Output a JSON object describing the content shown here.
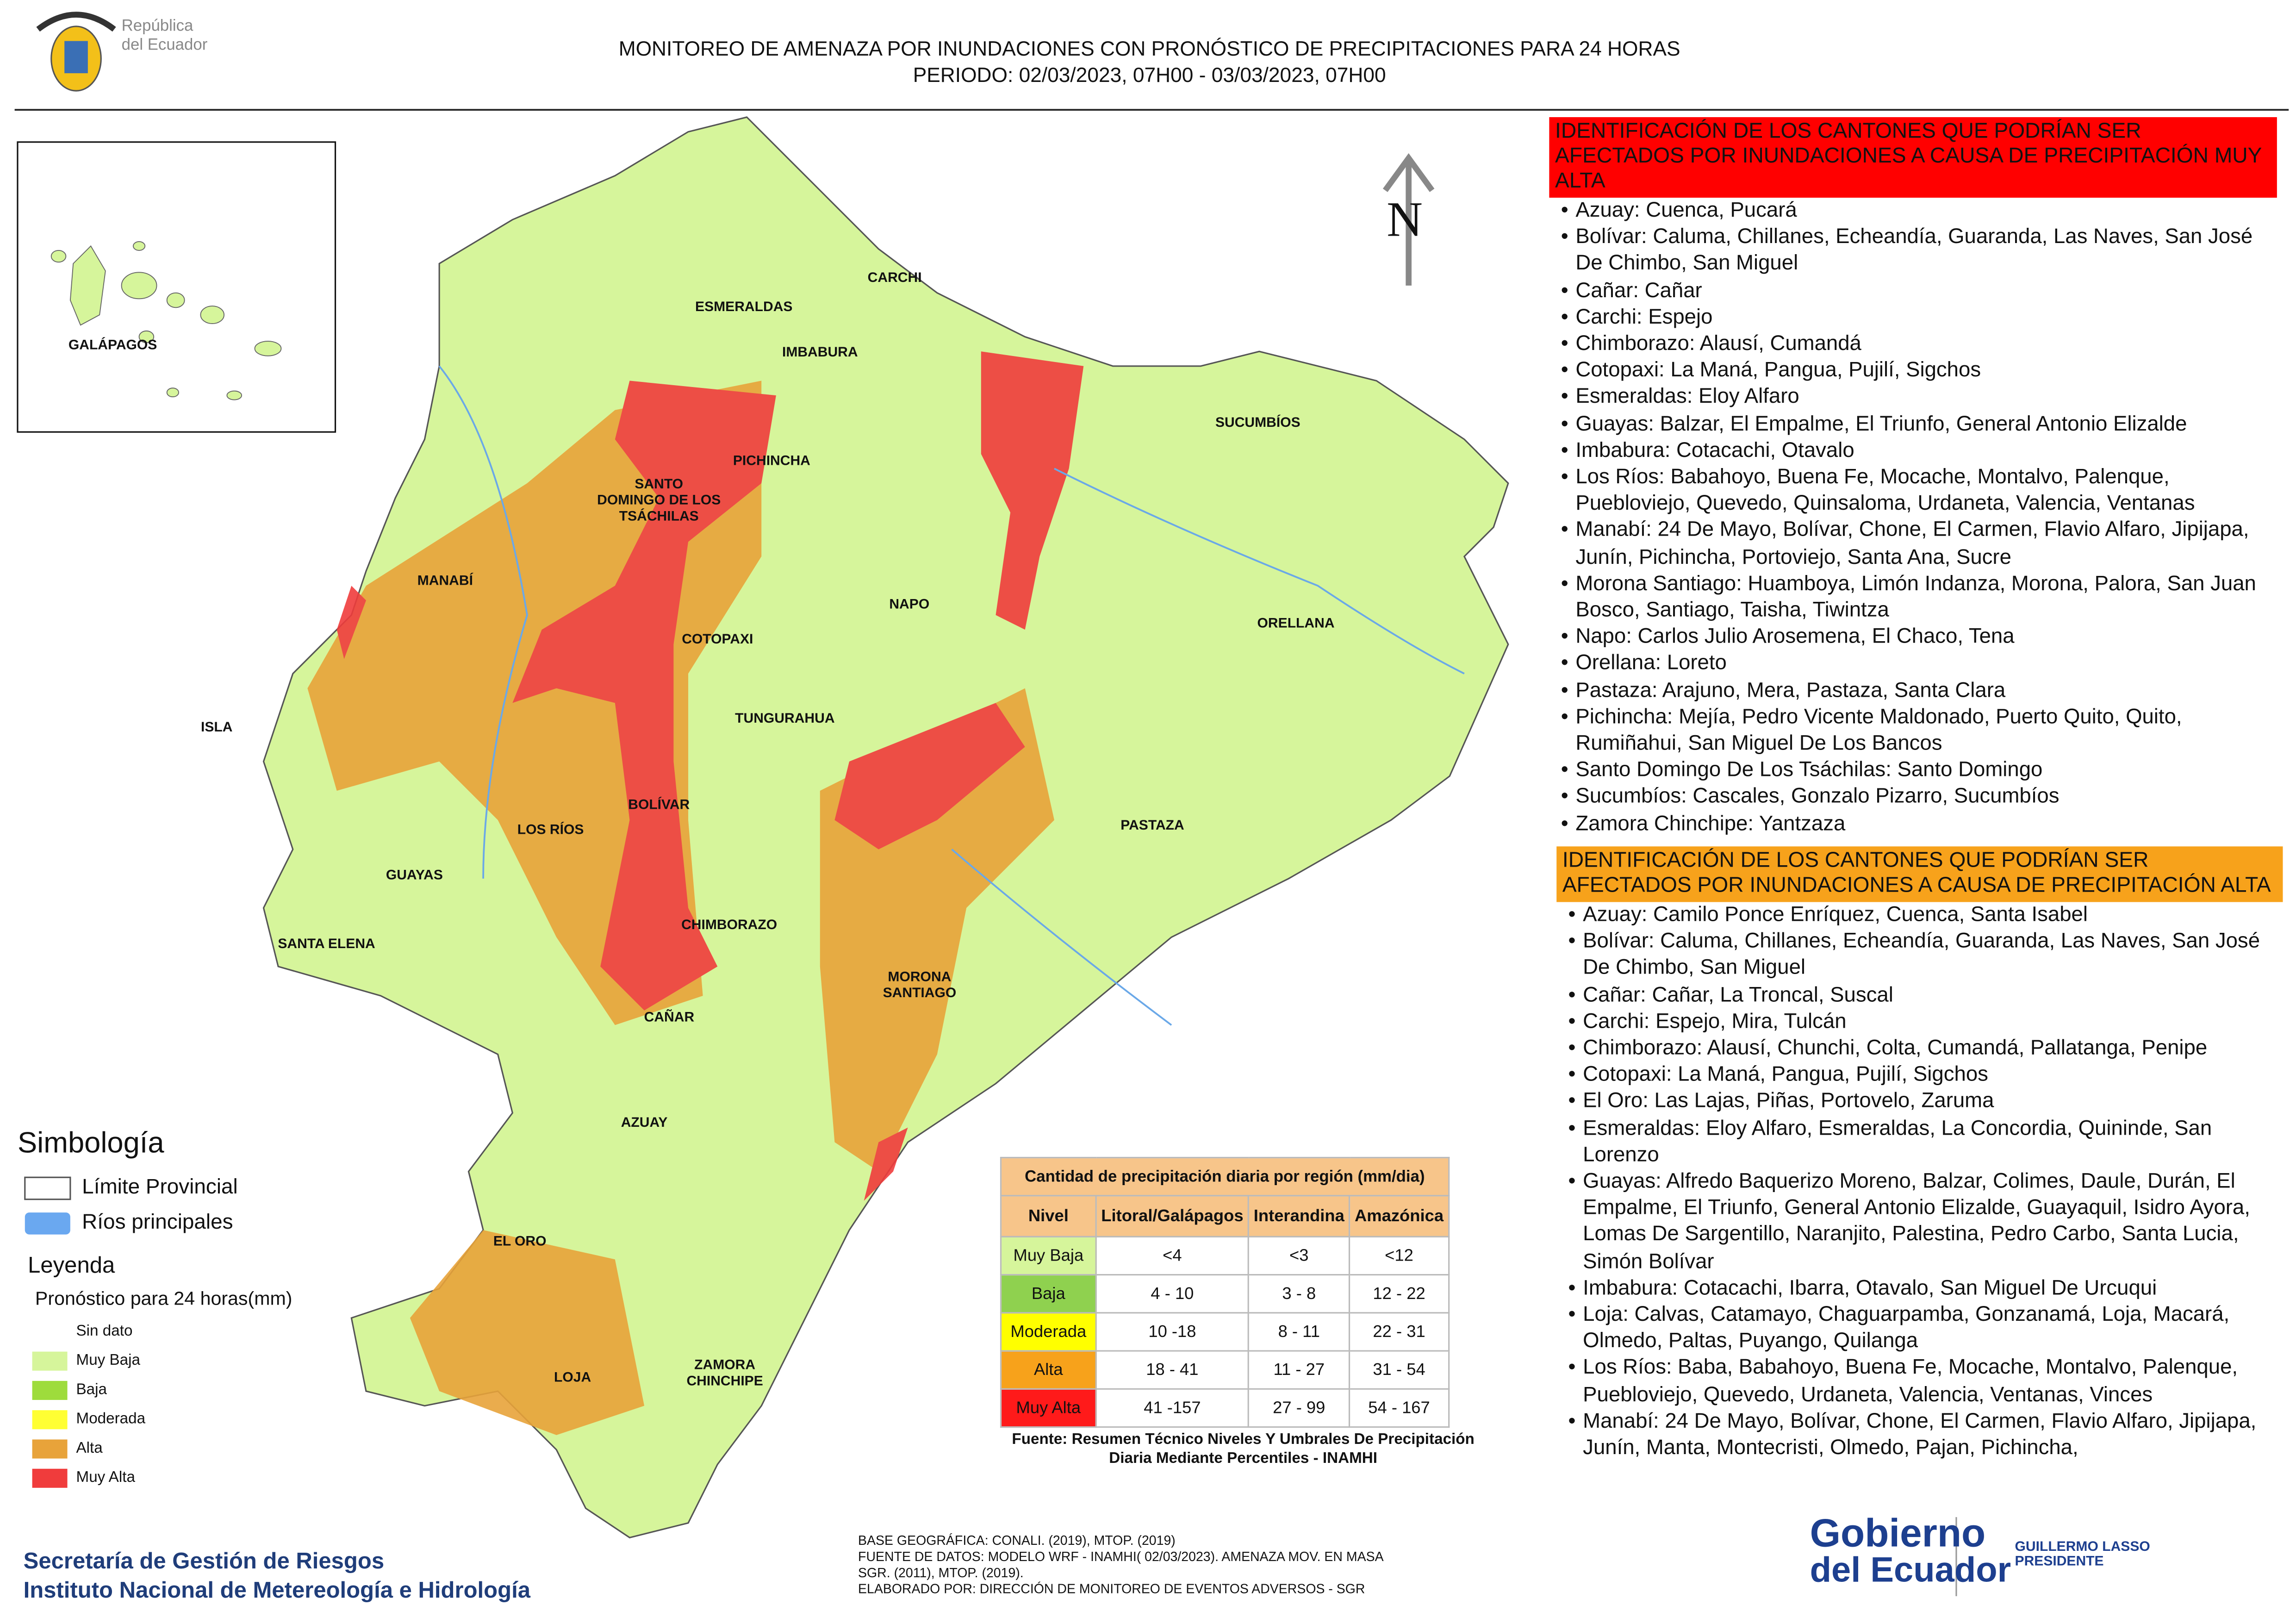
{
  "header": {
    "title_line1": "MONITOREO DE AMENAZA POR INUNDACIONES  CON PRONÓSTICO DE  PRECIPITACIONES PARA 24 HORAS",
    "title_line2": "PERIODO: 02/03/2023, 07H00 - 03/03/2023, 07H00",
    "logo_line1": "República",
    "logo_line2": "del Ecuador"
  },
  "map": {
    "north": "N",
    "labels": [
      "CARCHI",
      "ESMERALDAS",
      "IMBABURA",
      "SUCUMBÍOS",
      "PICHINCHA",
      "SANTO\nDOMINGO DE LOS\nTSÁCHILAS",
      "MANABÍ",
      "NAPO",
      "ORELLANA",
      "COTOPAXI",
      "TUNGURAHUA",
      "ISLA",
      "BOLÍVAR",
      "LOS RÍOS",
      "PASTAZA",
      "GUAYAS",
      "CHIMBORAZO",
      "SANTA ELENA",
      "MORONA\nSANTIAGO",
      "CAÑAR",
      "AZUAY",
      "EL ORO",
      "ZAMORA\nCHINCHIPE",
      "LOJA"
    ],
    "inset_label": "GALÁPAGOS"
  },
  "very_high": {
    "color": "#ff0000",
    "heading": "IDENTIFICACIÓN DE LOS CANTONES QUE PODRÍAN SER AFECTADOS POR INUNDACIONES  A CAUSA DE PRECIPITACIÓN MUY ALTA",
    "items": [
      "Azuay: Cuenca, Pucará",
      "Bolívar: Caluma, Chillanes, Echeandía, Guaranda, Las Naves, San José De Chimbo, San Miguel",
      "Cañar: Cañar",
      "Carchi: Espejo",
      "Chimborazo: Alausí, Cumandá",
      "Cotopaxi: La Maná, Pangua, Pujilí, Sigchos",
      "Esmeraldas: Eloy Alfaro",
      "Guayas: Balzar, El Empalme, El Triunfo, General Antonio Elizalde",
      "Imbabura: Cotacachi, Otavalo",
      "Los Ríos: Babahoyo, Buena Fe, Mocache, Montalvo, Palenque, Puebloviejo, Quevedo, Quinsaloma, Urdaneta, Valencia, Ventanas",
      "Manabí: 24 De Mayo, Bolívar, Chone, El Carmen, Flavio Alfaro, Jipijapa, Junín, Pichincha, Portoviejo, Santa Ana, Sucre",
      "Morona Santiago: Huamboya, Limón Indanza, Morona, Palora, San Juan Bosco, Santiago, Taisha, Tiwintza",
      "Napo: Carlos Julio Arosemena, El Chaco, Tena",
      "Orellana: Loreto",
      "Pastaza: Arajuno, Mera, Pastaza, Santa Clara",
      "Pichincha: Mejía, Pedro Vicente Maldonado, Puerto Quito, Quito, Rumiñahui, San Miguel De Los Bancos",
      "Santo Domingo De Los Tsáchilas: Santo Domingo",
      "Sucumbíos: Cascales, Gonzalo Pizarro, Sucumbíos",
      "Zamora Chinchipe: Yantzaza"
    ]
  },
  "high": {
    "color": "#f7a21b",
    "heading": "IDENTIFICACIÓN DE LOS CANTONES QUE  PODRÍAN SER AFECTADOS POR INUNDACIONES  A CAUSA DE PRECIPITACIÓN ALTA",
    "items": [
      "Azuay: Camilo Ponce Enríquez, Cuenca, Santa Isabel",
      "Bolívar: Caluma, Chillanes, Echeandía, Guaranda, Las Naves, San José De Chimbo, San Miguel",
      "Cañar: Cañar, La Troncal, Suscal",
      "Carchi: Espejo, Mira, Tulcán",
      "Chimborazo: Alausí, Chunchi, Colta, Cumandá, Pallatanga, Penipe",
      "Cotopaxi: La Maná, Pangua, Pujilí, Sigchos",
      "El Oro: Las Lajas, Piñas, Portovelo, Zaruma",
      "Esmeraldas: Eloy Alfaro, Esmeraldas, La Concordia, Quininde, San Lorenzo",
      "Guayas: Alfredo Baquerizo Moreno, Balzar, Colimes, Daule, Durán, El Empalme, El Triunfo, General Antonio Elizalde, Guayaquil, Isidro Ayora, Lomas De Sargentillo, Naranjito, Palestina, Pedro Carbo, Santa Lucia, Simón Bolívar",
      "Imbabura: Cotacachi, Ibarra, Otavalo, San Miguel De Urcuqui",
      "Loja: Calvas, Catamayo, Chaguarpamba, Gonzanamá, Loja, Macará, Olmedo, Paltas, Puyango, Quilanga",
      "Los Ríos: Baba, Babahoyo, Buena Fe, Mocache, Montalvo, Palenque, Puebloviejo, Quevedo, Urdaneta, Valencia, Ventanas, Vinces",
      "Manabí: 24 De Mayo, Bolívar, Chone, El Carmen, Flavio Alfaro, Jipijapa, Junín, Manta, Montecristi, Olmedo, Pajan, Pichincha,"
    ]
  },
  "legend": {
    "title": "Simbología",
    "provincial_limit": "Límite Provincial",
    "rivers": "Ríos principales",
    "subtitle": "Leyenda",
    "forecast": "Pronóstico para 24 horas(mm)",
    "classes": [
      {
        "label": "Sin dato",
        "color": "#ffffff"
      },
      {
        "label": " Muy Baja",
        "color": "#d6f59b"
      },
      {
        "label": "Baja",
        "color": "#9edc3c"
      },
      {
        "label": "Moderada",
        "color": "#ffff33"
      },
      {
        "label": "Alta",
        "color": "#e8a33a"
      },
      {
        "label": "Muy Alta",
        "color": "#f03c3c"
      }
    ]
  },
  "table": {
    "title": "Cantidad de precipitación diaria por región (mm/dia)",
    "header": [
      "Nivel",
      "Litoral/Galápagos",
      "Interandina",
      "Amazónica"
    ],
    "rows": [
      [
        "Muy Baja",
        "<4",
        "<3",
        "<12"
      ],
      [
        "Baja",
        "4 - 10",
        "3 - 8",
        "12 - 22"
      ],
      [
        "Moderada",
        "10 -18",
        "8 - 11",
        "22 - 31"
      ],
      [
        "Alta",
        "18 - 41",
        "11 - 27",
        "31 - 54"
      ],
      [
        "Muy Alta",
        "41 -157",
        "27 - 99",
        "54 - 167"
      ]
    ],
    "row_colors": [
      "#d6f59b",
      "#8fd14f",
      "#ffff00",
      "#f7a21b",
      "#ff1a1a"
    ],
    "source": "Fuente: Resumen Técnico Niveles Y Umbrales De Precipitación Diaria Mediante Percentiles - INAMHI"
  },
  "footer": {
    "agency_line1": "Secretaría de Gestión de Riesgos",
    "agency_line2": "Instituto Nacional de Metereología e Hidrología",
    "credits": [
      "BASE GEOGRÁFICA: CONALI. (2019), MTOP. (2019)",
      "FUENTE DE DATOS: MODELO WRF - INAMHI( 02/03/2023).  AMENAZA MOV. EN MASA",
      "SGR. (2011), MTOP. (2019).",
      "ELABORADO POR: DIRECCIÓN DE MONITOREO DE EVENTOS ADVERSOS - SGR"
    ],
    "gov_line1": "Gobierno",
    "gov_line2": "del Ecuador",
    "president_line1": "GUILLERMO LASSO",
    "president_line2": "PRESIDENTE"
  }
}
